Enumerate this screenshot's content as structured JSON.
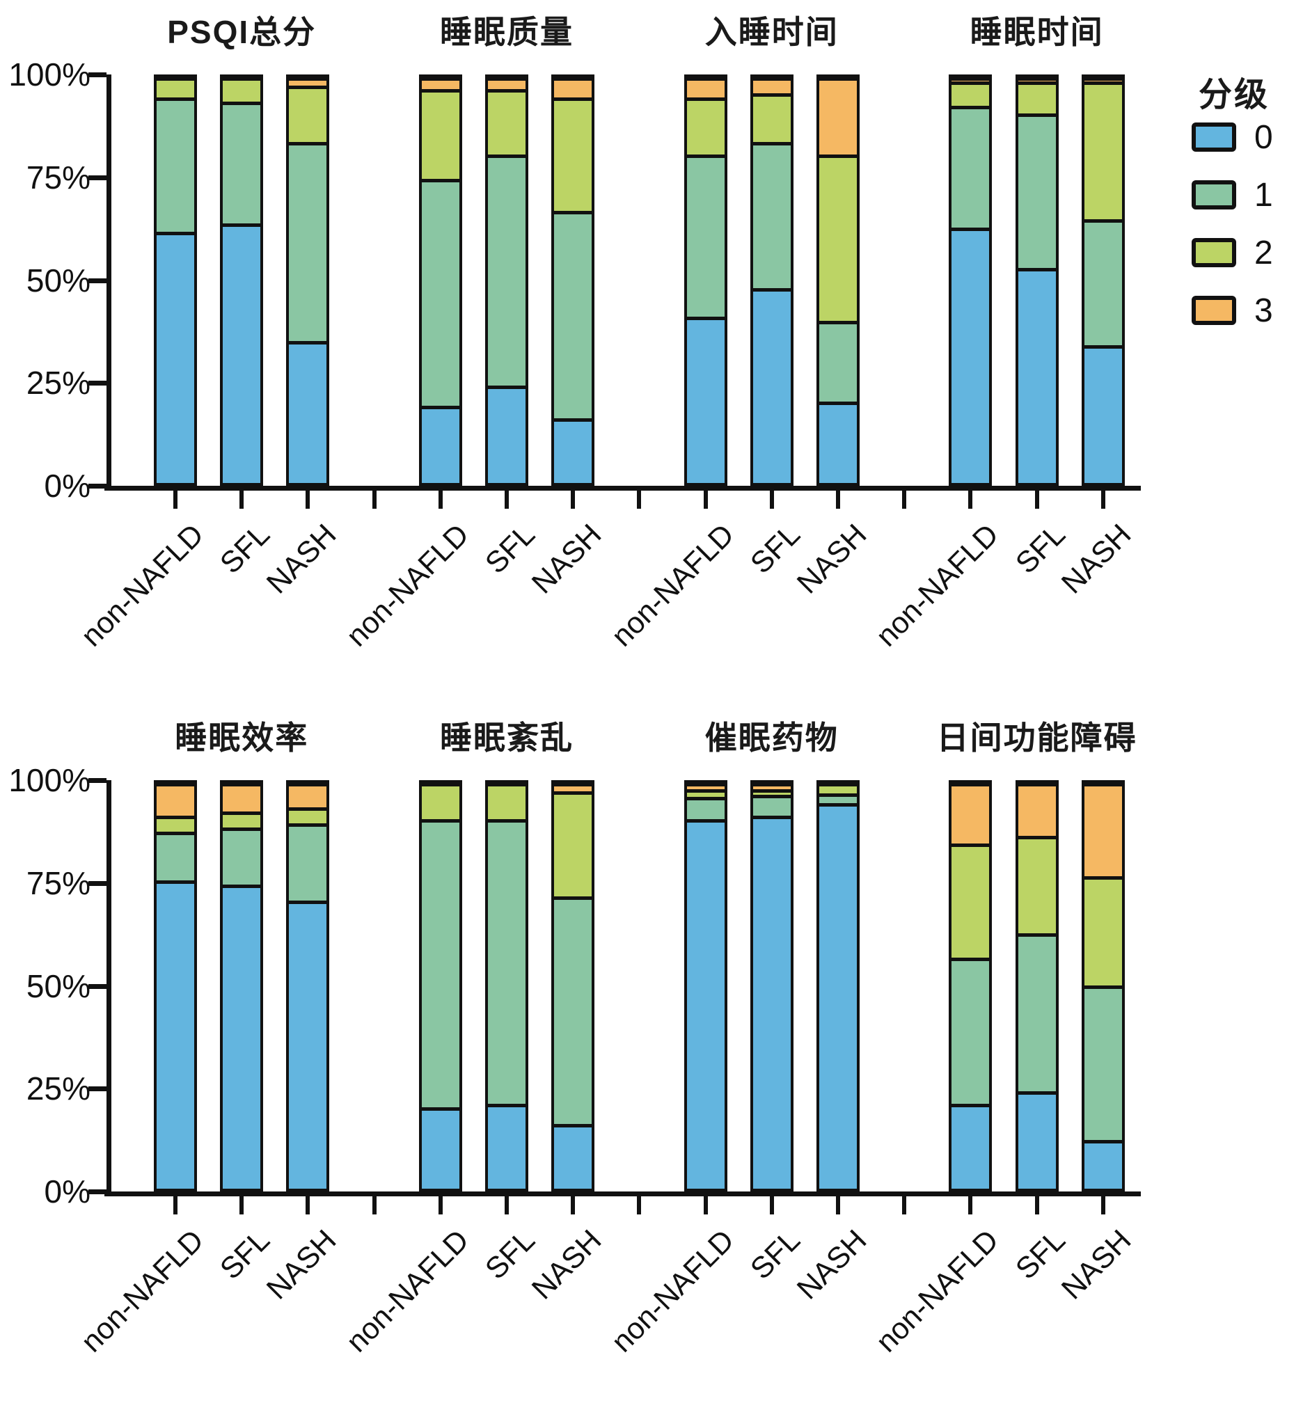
{
  "figure": {
    "y_axis_ticks": [
      "100%",
      "75%",
      "50%",
      "25%",
      "0%"
    ],
    "x_categories": [
      "non-NAFLD",
      "SFL",
      "NASH"
    ],
    "legend": {
      "title": "分级",
      "entries": [
        {
          "label": "0",
          "color": "#63B5DF"
        },
        {
          "label": "1",
          "color": "#8AC6A3"
        },
        {
          "label": "2",
          "color": "#BCD465"
        },
        {
          "label": "3",
          "color": "#F5B863"
        }
      ]
    },
    "colors": {
      "grade0": "#63B5DF",
      "grade1": "#8AC6A3",
      "grade2": "#BCD465",
      "grade3": "#F5B863",
      "outline": "#111111"
    }
  },
  "chart_data": [
    {
      "type": "bar",
      "subtype": "stacked-100",
      "title": "PSQI总分",
      "categories": [
        "non-NAFLD",
        "SFL",
        "NASH"
      ],
      "ylim": [
        0,
        100
      ],
      "series": [
        {
          "name": "0",
          "values": [
            62,
            64,
            35
          ]
        },
        {
          "name": "1",
          "values": [
            33,
            30,
            49
          ]
        },
        {
          "name": "2",
          "values": [
            5,
            6,
            14
          ]
        },
        {
          "name": "3",
          "values": [
            0,
            0,
            2
          ]
        }
      ]
    },
    {
      "type": "bar",
      "subtype": "stacked-100",
      "title": "睡眠质量",
      "categories": [
        "non-NAFLD",
        "SFL",
        "NASH"
      ],
      "ylim": [
        0,
        100
      ],
      "series": [
        {
          "name": "0",
          "values": [
            19,
            24,
            16
          ]
        },
        {
          "name": "1",
          "values": [
            56,
            57,
            51
          ]
        },
        {
          "name": "2",
          "values": [
            22,
            16,
            28
          ]
        },
        {
          "name": "3",
          "values": [
            3,
            3,
            5
          ]
        }
      ]
    },
    {
      "type": "bar",
      "subtype": "stacked-100",
      "title": "入睡时间",
      "categories": [
        "non-NAFLD",
        "SFL",
        "NASH"
      ],
      "ylim": [
        0,
        100
      ],
      "series": [
        {
          "name": "0",
          "values": [
            41,
            48,
            20
          ]
        },
        {
          "name": "1",
          "values": [
            40,
            36,
            20
          ]
        },
        {
          "name": "2",
          "values": [
            14,
            12,
            41
          ]
        },
        {
          "name": "3",
          "values": [
            5,
            4,
            19
          ]
        }
      ]
    },
    {
      "type": "bar",
      "subtype": "stacked-100",
      "title": "睡眠时间",
      "categories": [
        "non-NAFLD",
        "SFL",
        "NASH"
      ],
      "ylim": [
        0,
        100
      ],
      "series": [
        {
          "name": "0",
          "values": [
            63,
            53,
            34
          ]
        },
        {
          "name": "1",
          "values": [
            30,
            38,
            31
          ]
        },
        {
          "name": "2",
          "values": [
            6,
            8,
            34
          ]
        },
        {
          "name": "3",
          "values": [
            1,
            1,
            1
          ]
        }
      ]
    },
    {
      "type": "bar",
      "subtype": "stacked-100",
      "title": "睡眠效率",
      "categories": [
        "non-NAFLD",
        "SFL",
        "NASH"
      ],
      "ylim": [
        0,
        100
      ],
      "series": [
        {
          "name": "0",
          "values": [
            76,
            75,
            71
          ]
        },
        {
          "name": "1",
          "values": [
            12,
            14,
            19
          ]
        },
        {
          "name": "2",
          "values": [
            4,
            4,
            4
          ]
        },
        {
          "name": "3",
          "values": [
            8,
            7,
            6
          ]
        }
      ]
    },
    {
      "type": "bar",
      "subtype": "stacked-100",
      "title": "睡眠紊乱",
      "categories": [
        "non-NAFLD",
        "SFL",
        "NASH"
      ],
      "ylim": [
        0,
        100
      ],
      "series": [
        {
          "name": "0",
          "values": [
            20,
            21,
            16
          ]
        },
        {
          "name": "1",
          "values": [
            71,
            70,
            56
          ]
        },
        {
          "name": "2",
          "values": [
            9,
            9,
            26
          ]
        },
        {
          "name": "3",
          "values": [
            0,
            0,
            2
          ]
        }
      ]
    },
    {
      "type": "bar",
      "subtype": "stacked-100",
      "title": "催眠药物",
      "categories": [
        "non-NAFLD",
        "SFL",
        "NASH"
      ],
      "ylim": [
        0,
        100
      ],
      "series": [
        {
          "name": "0",
          "values": [
            91,
            92,
            95
          ]
        },
        {
          "name": "1",
          "values": [
            5.5,
            5,
            2.5
          ]
        },
        {
          "name": "2",
          "values": [
            2,
            1.5,
            2.5
          ]
        },
        {
          "name": "3",
          "values": [
            1.5,
            1.5,
            0
          ]
        }
      ]
    },
    {
      "type": "bar",
      "subtype": "stacked-100",
      "title": "日间功能障碍",
      "categories": [
        "non-NAFLD",
        "SFL",
        "NASH"
      ],
      "ylim": [
        0,
        100
      ],
      "series": [
        {
          "name": "0",
          "values": [
            21,
            24,
            12
          ]
        },
        {
          "name": "1",
          "values": [
            36,
            39,
            38
          ]
        },
        {
          "name": "2",
          "values": [
            28,
            24,
            27
          ]
        },
        {
          "name": "3",
          "values": [
            15,
            13,
            23
          ]
        }
      ]
    }
  ]
}
